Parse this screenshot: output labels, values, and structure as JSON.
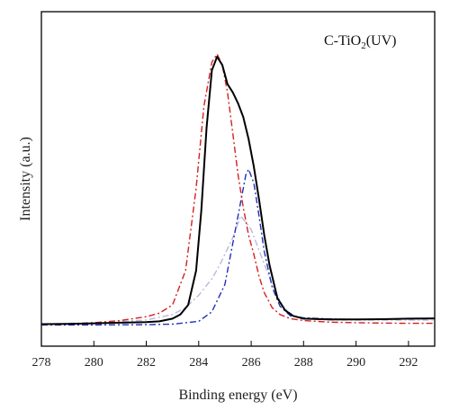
{
  "chart_data": {
    "type": "line",
    "title": "",
    "xlabel": "Binding energy (eV)",
    "ylabel": "Intensity (a.u.)",
    "annotation": {
      "prefix": "C-TiO",
      "subscript": "2",
      "suffix": "(UV)"
    },
    "xlim": [
      278,
      293
    ],
    "ylim": [
      0,
      1.0
    ],
    "xticks": [
      278,
      280,
      282,
      284,
      286,
      288,
      290,
      292
    ],
    "y_tick_labels": false,
    "grid": false,
    "legend": "none",
    "series": [
      {
        "key": "measured",
        "color": "#000000",
        "style": "solid",
        "x": [
          278,
          279,
          280,
          281,
          282,
          282.5,
          283,
          283.3,
          283.6,
          283.9,
          284.1,
          284.3,
          284.5,
          284.7,
          284.9,
          285.1,
          285.3,
          285.5,
          285.7,
          285.9,
          286.1,
          286.3,
          286.5,
          286.7,
          287.0,
          287.3,
          287.6,
          288.0,
          289,
          290,
          291,
          292,
          293
        ],
        "y": [
          0.005,
          0.006,
          0.008,
          0.01,
          0.012,
          0.015,
          0.025,
          0.04,
          0.075,
          0.2,
          0.42,
          0.72,
          0.93,
          0.98,
          0.95,
          0.88,
          0.85,
          0.81,
          0.76,
          0.68,
          0.58,
          0.46,
          0.33,
          0.22,
          0.1,
          0.055,
          0.035,
          0.025,
          0.022,
          0.022,
          0.023,
          0.025,
          0.026
        ]
      },
      {
        "key": "fit_1",
        "color": "#d42020",
        "style": "dash-dot",
        "x": [
          278,
          279,
          280,
          281,
          282,
          282.5,
          283,
          283.5,
          283.9,
          284.2,
          284.5,
          284.7,
          284.9,
          285.1,
          285.3,
          285.5,
          285.7,
          285.9,
          286.1,
          286.3,
          286.5,
          286.8,
          287.1,
          287.5,
          288,
          289,
          290,
          291,
          292,
          293
        ],
        "y": [
          0.004,
          0.006,
          0.01,
          0.018,
          0.032,
          0.045,
          0.075,
          0.2,
          0.5,
          0.8,
          0.96,
          0.99,
          0.95,
          0.85,
          0.7,
          0.55,
          0.43,
          0.33,
          0.26,
          0.18,
          0.12,
          0.065,
          0.04,
          0.025,
          0.018,
          0.012,
          0.01,
          0.009,
          0.008,
          0.008
        ]
      },
      {
        "key": "fit_2",
        "color": "#2030b8",
        "style": "dash-dot",
        "x": [
          278,
          280,
          282,
          283,
          284,
          284.5,
          285,
          285.3,
          285.6,
          285.8,
          285.9,
          286.1,
          286.3,
          286.5,
          286.8,
          287.1,
          287.5,
          288,
          289,
          290,
          291,
          292,
          293
        ],
        "y": [
          0.002,
          0.002,
          0.003,
          0.005,
          0.015,
          0.05,
          0.15,
          0.3,
          0.45,
          0.55,
          0.57,
          0.52,
          0.4,
          0.27,
          0.14,
          0.07,
          0.035,
          0.028,
          0.024,
          0.022,
          0.022,
          0.024,
          0.025
        ]
      },
      {
        "key": "fit_3",
        "color": "#b8b8e0",
        "style": "dash-dot",
        "x": [
          278,
          280,
          282,
          283,
          283.5,
          284,
          284.5,
          284.8,
          285,
          285.3,
          285.6,
          286,
          286.4,
          286.8,
          287.2,
          287.6,
          288,
          289,
          290,
          292,
          293
        ],
        "y": [
          0.005,
          0.01,
          0.02,
          0.04,
          0.065,
          0.11,
          0.17,
          0.22,
          0.26,
          0.32,
          0.4,
          0.35,
          0.25,
          0.15,
          0.07,
          0.035,
          0.025,
          0.02,
          0.02,
          0.02,
          0.02
        ]
      }
    ]
  }
}
